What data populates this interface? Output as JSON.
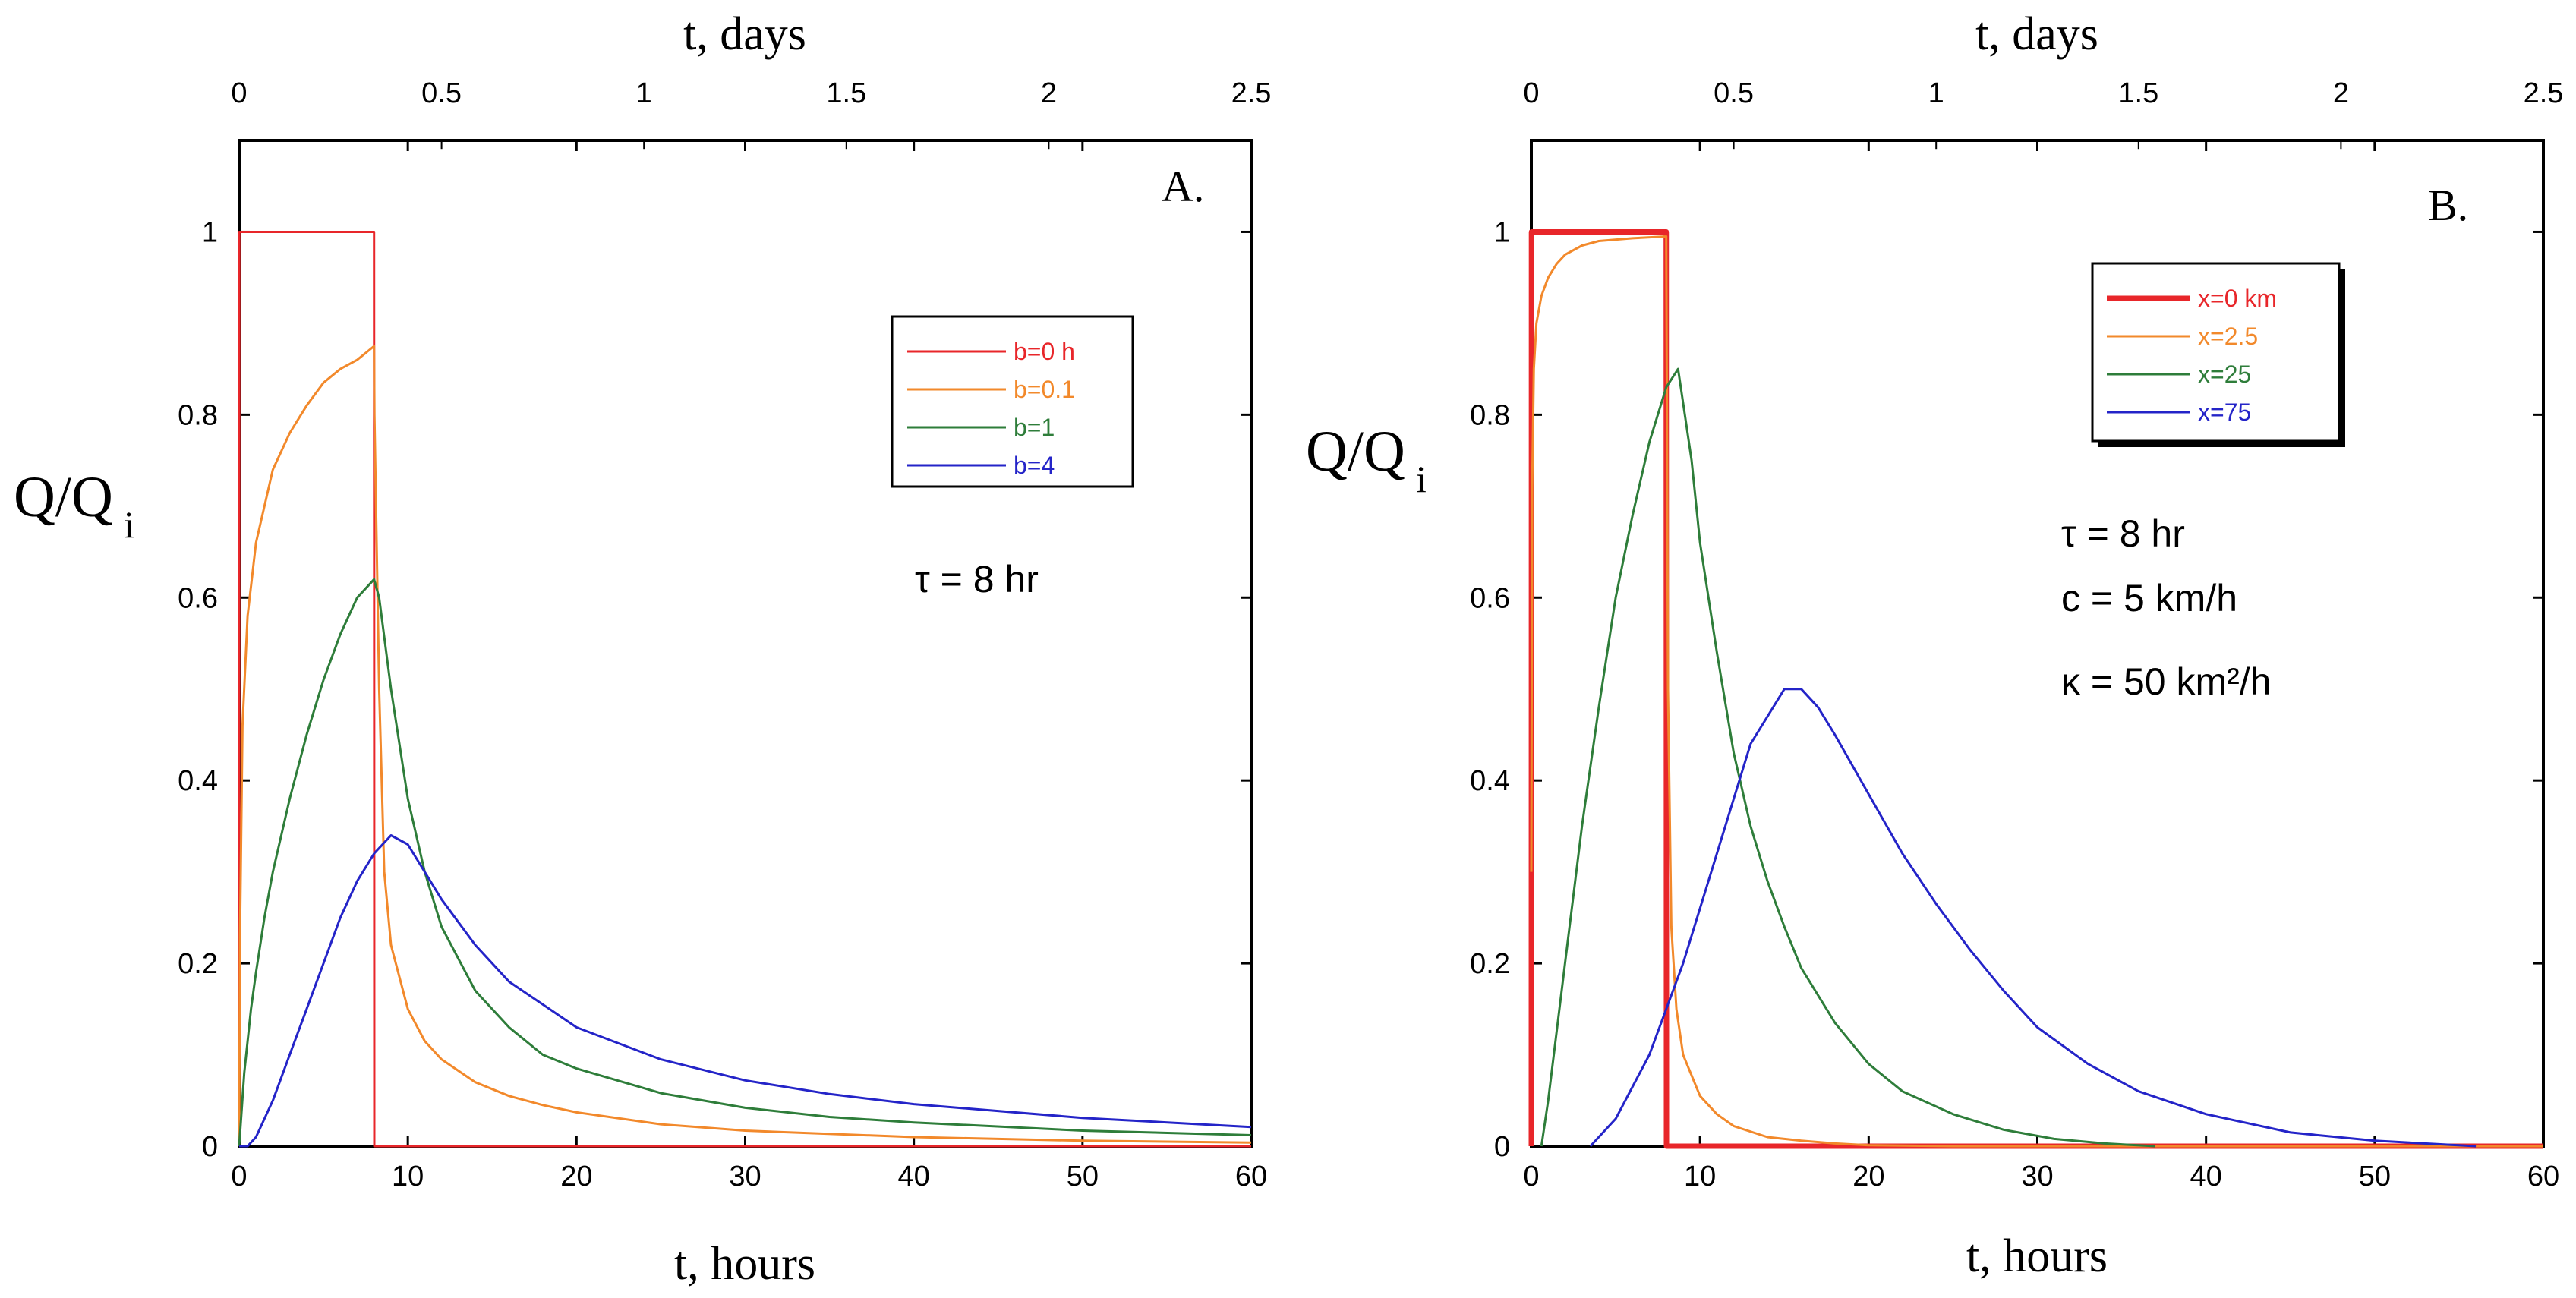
{
  "chart_data": [
    {
      "type": "line",
      "panel_label": "A.",
      "xlabel": "t, hours",
      "x2label": "t, days",
      "ylabel": "Q/Q",
      "ylabel_sub": "i",
      "xlim": [
        0,
        60
      ],
      "x2lim": [
        0,
        2.5
      ],
      "ylim": [
        0,
        1.1
      ],
      "xticks": [
        "0",
        "10",
        "20",
        "30",
        "40",
        "50",
        "60"
      ],
      "x2ticks": [
        "0",
        "0.5",
        "1",
        "1.5",
        "2",
        "2.5"
      ],
      "yticks": [
        "0",
        "0.2",
        "0.4",
        "0.6",
        "0.8",
        "1"
      ],
      "annotations": [
        "τ = 8 hr"
      ],
      "legend": {
        "position": "top-right"
      },
      "series": [
        {
          "name": "b=0 h",
          "color": "#e8262a",
          "stroke_width": 3,
          "x": [
            0,
            0.01,
            8,
            8.01,
            60
          ],
          "y": [
            0,
            1,
            1,
            0,
            0
          ]
        },
        {
          "name": "b=0.1",
          "color": "#f2892b",
          "stroke_width": 3,
          "x": [
            0,
            0.05,
            0.2,
            0.5,
            1,
            2,
            3,
            4,
            5,
            6,
            7,
            8,
            8.02,
            8.3,
            8.6,
            9,
            10,
            11,
            12,
            14,
            16,
            18,
            20,
            25,
            30,
            40,
            50,
            60
          ],
          "y": [
            0,
            0.23,
            0.46,
            0.58,
            0.66,
            0.74,
            0.78,
            0.81,
            0.835,
            0.85,
            0.86,
            0.875,
            0.8,
            0.5,
            0.3,
            0.22,
            0.15,
            0.115,
            0.095,
            0.07,
            0.055,
            0.045,
            0.037,
            0.024,
            0.017,
            0.01,
            0.006,
            0.004
          ]
        },
        {
          "name": "b=1",
          "color": "#2e7d3a",
          "stroke_width": 3,
          "x": [
            0,
            0.3,
            0.7,
            1,
            1.5,
            2,
            3,
            4,
            5,
            6,
            7,
            8,
            8.3,
            9,
            10,
            11,
            12,
            14,
            16,
            18,
            20,
            25,
            30,
            35,
            40,
            50,
            60
          ],
          "y": [
            0,
            0.08,
            0.15,
            0.19,
            0.25,
            0.3,
            0.38,
            0.45,
            0.51,
            0.56,
            0.6,
            0.62,
            0.6,
            0.5,
            0.38,
            0.3,
            0.24,
            0.17,
            0.13,
            0.1,
            0.085,
            0.058,
            0.042,
            0.032,
            0.026,
            0.017,
            0.012
          ]
        },
        {
          "name": "b=4",
          "color": "#2424c8",
          "stroke_width": 3,
          "x": [
            0,
            0.5,
            1,
            2,
            3,
            4,
            5,
            6,
            7,
            8,
            9,
            10,
            11,
            12,
            14,
            16,
            18,
            20,
            25,
            30,
            35,
            40,
            50,
            60
          ],
          "y": [
            0,
            0,
            0.01,
            0.05,
            0.1,
            0.15,
            0.2,
            0.25,
            0.29,
            0.32,
            0.34,
            0.33,
            0.3,
            0.27,
            0.22,
            0.18,
            0.155,
            0.13,
            0.095,
            0.072,
            0.057,
            0.046,
            0.031,
            0.021
          ]
        }
      ]
    },
    {
      "type": "line",
      "panel_label": "B.",
      "xlabel": "t, hours",
      "x2label": "t, days",
      "ylabel": "Q/Q",
      "ylabel_sub": "i",
      "xlim": [
        0,
        60
      ],
      "x2lim": [
        0,
        2.5
      ],
      "ylim": [
        0,
        1.1
      ],
      "xticks": [
        "0",
        "10",
        "20",
        "30",
        "40",
        "50",
        "60"
      ],
      "x2ticks": [
        "0",
        "0.5",
        "1",
        "1.5",
        "2",
        "2.5"
      ],
      "yticks": [
        "0",
        "0.2",
        "0.4",
        "0.6",
        "0.8",
        "1"
      ],
      "annotations": [
        "τ = 8 hr",
        "c = 5 km/h",
        "κ = 50 km²/h"
      ],
      "legend": {
        "position": "top-right"
      },
      "series": [
        {
          "name": "x=0 km",
          "color": "#e8262a",
          "stroke_width": 7,
          "x": [
            0,
            0.01,
            8,
            8.01,
            60
          ],
          "y": [
            0,
            1,
            1,
            0,
            0
          ]
        },
        {
          "name": "x=2.5",
          "color": "#f2892b",
          "stroke_width": 3,
          "x": [
            0,
            0.05,
            0.15,
            0.3,
            0.6,
            1,
            1.5,
            2,
            3,
            4,
            6,
            8,
            8.1,
            8.3,
            8.6,
            9,
            10,
            11,
            12,
            14,
            16,
            18,
            20,
            25,
            30,
            60
          ],
          "y": [
            0.3,
            0.72,
            0.85,
            0.9,
            0.93,
            0.95,
            0.965,
            0.975,
            0.985,
            0.99,
            0.993,
            0.995,
            0.5,
            0.24,
            0.15,
            0.1,
            0.055,
            0.035,
            0.022,
            0.01,
            0.006,
            0.003,
            0.001,
            0,
            0,
            0
          ]
        },
        {
          "name": "x=25",
          "color": "#2e7d3a",
          "stroke_width": 3,
          "x": [
            0.6,
            1,
            2,
            3,
            4,
            5,
            6,
            7,
            8,
            8.7,
            9.5,
            10,
            11,
            12,
            13,
            14,
            15,
            16,
            18,
            20,
            22,
            25,
            28,
            31,
            34,
            37
          ],
          "y": [
            0,
            0.05,
            0.2,
            0.35,
            0.48,
            0.6,
            0.69,
            0.77,
            0.83,
            0.85,
            0.75,
            0.66,
            0.54,
            0.43,
            0.35,
            0.29,
            0.24,
            0.195,
            0.135,
            0.09,
            0.06,
            0.035,
            0.018,
            0.008,
            0.003,
            0
          ]
        },
        {
          "name": "x=75",
          "color": "#2424c8",
          "stroke_width": 3,
          "x": [
            3.5,
            5,
            7,
            9,
            11,
            13,
            15,
            16,
            17,
            18,
            20,
            22,
            24,
            26,
            28,
            30,
            33,
            36,
            40,
            45,
            50,
            56
          ],
          "y": [
            0,
            0.03,
            0.1,
            0.2,
            0.32,
            0.44,
            0.5,
            0.5,
            0.48,
            0.45,
            0.385,
            0.32,
            0.265,
            0.215,
            0.17,
            0.13,
            0.09,
            0.06,
            0.035,
            0.015,
            0.006,
            0
          ]
        }
      ]
    }
  ]
}
